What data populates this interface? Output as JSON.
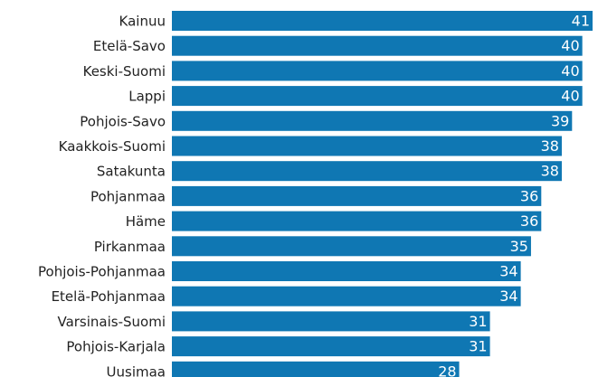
{
  "chart_data": {
    "type": "bar",
    "orientation": "horizontal",
    "color": "#0f77b3",
    "categories": [
      "Kainuu",
      "Etelä-Savo",
      "Keski-Suomi",
      "Lappi",
      "Pohjois-Savo",
      "Kaakkois-Suomi",
      "Satakunta",
      "Pohjanmaa",
      "Häme",
      "Pirkanmaa",
      "Pohjois-Pohjanmaa",
      "Etelä-Pohjanmaa",
      "Varsinais-Suomi",
      "Pohjois-Karjala",
      "Uusimaa"
    ],
    "values": [
      41,
      40,
      40,
      40,
      39,
      38,
      38,
      36,
      36,
      35,
      34,
      34,
      31,
      31,
      28
    ]
  }
}
